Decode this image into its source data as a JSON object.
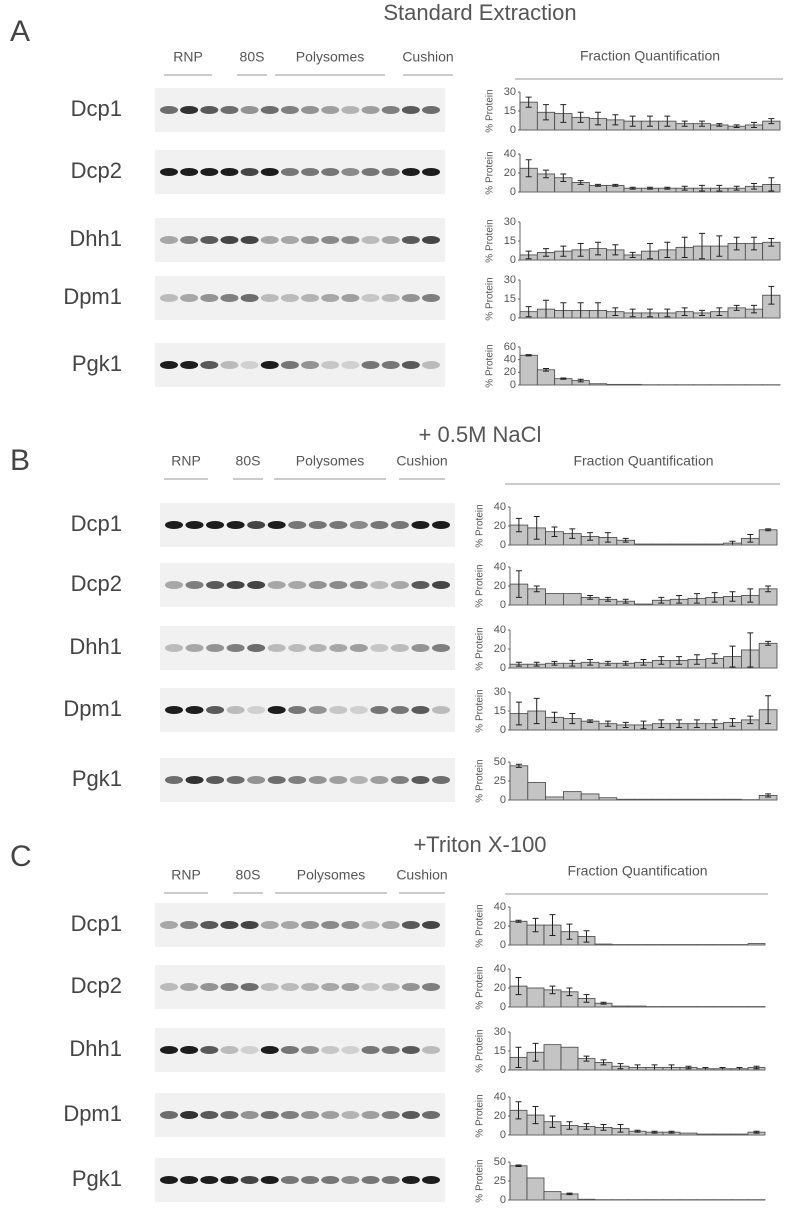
{
  "panels": [
    {
      "letter": "A",
      "title": "Standard Extraction",
      "headers": [
        "RNP",
        "80S",
        "Polysomes",
        "Cushion"
      ],
      "quant_title": "Fraction Quantification",
      "proteins": [
        "Dcp1",
        "Dcp2",
        "Dhh1",
        "Dpm1",
        "Pgk1"
      ]
    },
    {
      "letter": "B",
      "title": "+ 0.5M NaCl",
      "headers": [
        "RNP",
        "80S",
        "Polysomes",
        "Cushion"
      ],
      "quant_title": "Fraction Quantification",
      "proteins": [
        "Dcp1",
        "Dcp2",
        "Dhh1",
        "Dpm1",
        "Pgk1"
      ]
    },
    {
      "letter": "C",
      "title": "+Triton X-100",
      "headers": [
        "RNP",
        "80S",
        "Polysomes",
        "Cushion"
      ],
      "quant_title": "Fraction Quantification",
      "proteins": [
        "Dcp1",
        "Dcp2",
        "Dhh1",
        "Dpm1",
        "Pgk1"
      ]
    }
  ],
  "chart_data": [
    {
      "type": "bar",
      "ylabel": "% Protein",
      "color": "#c4c4c4",
      "ylim": [
        0,
        30
      ],
      "yticks": [
        0,
        15,
        30
      ],
      "categories": [
        null,
        null,
        null,
        null,
        null,
        null,
        null,
        null,
        null,
        null,
        null,
        null,
        null,
        null,
        null
      ],
      "values": [
        22,
        14,
        13,
        10,
        9,
        8,
        7,
        7,
        7,
        5,
        5,
        4,
        3,
        4,
        7
      ],
      "errors": [
        4,
        6,
        7,
        4,
        5,
        4,
        4,
        4,
        4,
        2,
        2,
        1,
        1,
        2,
        2
      ]
    },
    {
      "type": "bar",
      "ylabel": "% Protein",
      "color": "#c4c4c4",
      "ylim": [
        0,
        40
      ],
      "yticks": [
        0,
        20,
        40
      ],
      "categories": [
        null,
        null,
        null,
        null,
        null,
        null,
        null,
        null,
        null,
        null,
        null,
        null,
        null,
        null,
        null
      ],
      "values": [
        25,
        19,
        15,
        10,
        7,
        7,
        4,
        4,
        4,
        4,
        4,
        4,
        4,
        6,
        8
      ],
      "errors": [
        9,
        4,
        4,
        2,
        1,
        1,
        1,
        1,
        1,
        2,
        3,
        3,
        2,
        3,
        7
      ]
    },
    {
      "type": "bar",
      "ylabel": "% Protein",
      "color": "#c4c4c4",
      "ylim": [
        0,
        30
      ],
      "yticks": [
        0,
        15,
        30
      ],
      "categories": [
        null,
        null,
        null,
        null,
        null,
        null,
        null,
        null,
        null,
        null,
        null,
        null,
        null,
        null,
        null
      ],
      "values": [
        4,
        6,
        7,
        8,
        9,
        8,
        4,
        7,
        8,
        10,
        11,
        11,
        13,
        13,
        14
      ],
      "errors": [
        3,
        3,
        4,
        5,
        5,
        4,
        2,
        6,
        6,
        8,
        10,
        8,
        5,
        5,
        3
      ]
    },
    {
      "type": "bar",
      "ylabel": "% Protein",
      "color": "#c4c4c4",
      "ylim": [
        0,
        30
      ],
      "yticks": [
        0,
        15,
        30
      ],
      "categories": [
        null,
        null,
        null,
        null,
        null,
        null,
        null,
        null,
        null,
        null,
        null,
        null,
        null,
        null,
        null
      ],
      "values": [
        5,
        7,
        6,
        6,
        6,
        5,
        4,
        4,
        4,
        5,
        4,
        5,
        8,
        7,
        18
      ],
      "errors": [
        4,
        7,
        6,
        6,
        6,
        3,
        3,
        3,
        3,
        3,
        2,
        3,
        2,
        3,
        7
      ]
    },
    {
      "type": "bar",
      "ylabel": "% Protein",
      "color": "#c4c4c4",
      "ylim": [
        0,
        60
      ],
      "yticks": [
        0,
        20,
        40,
        60
      ],
      "categories": [
        null,
        null,
        null,
        null,
        null,
        null,
        null,
        null,
        null,
        null,
        null,
        null,
        null,
        null,
        null
      ],
      "values": [
        47,
        24,
        10,
        7,
        2,
        1,
        1,
        0.5,
        0.5,
        0.5,
        0.5,
        0.5,
        0.5,
        0.5,
        0.5
      ],
      "errors": [
        1,
        2,
        1,
        2,
        0,
        0,
        0,
        0,
        0,
        0,
        0,
        0,
        0,
        0,
        0
      ]
    },
    {
      "type": "bar",
      "ylabel": "% Protein",
      "color": "#c4c4c4",
      "ylim": [
        0,
        40
      ],
      "yticks": [
        0,
        20,
        40
      ],
      "categories": [
        null,
        null,
        null,
        null,
        null,
        null,
        null,
        null,
        null,
        null,
        null,
        null,
        null,
        null,
        null
      ],
      "values": [
        21,
        18,
        14,
        12,
        9,
        8,
        5,
        1,
        1,
        1,
        1,
        1,
        2,
        7,
        16
      ],
      "errors": [
        7,
        12,
        5,
        5,
        4,
        5,
        2,
        0,
        0,
        0,
        0,
        0,
        2,
        4,
        1
      ]
    },
    {
      "type": "bar",
      "ylabel": "% Protein",
      "color": "#c4c4c4",
      "ylim": [
        0,
        40
      ],
      "yticks": [
        0,
        20,
        40
      ],
      "categories": [
        null,
        null,
        null,
        null,
        null,
        null,
        null,
        null,
        null,
        null,
        null,
        null,
        null,
        null,
        null
      ],
      "values": [
        22,
        17,
        12,
        12,
        8,
        6,
        4,
        1,
        5,
        6,
        7,
        8,
        9,
        10,
        17
      ],
      "errors": [
        14,
        3,
        0,
        0,
        2,
        2,
        2,
        0,
        3,
        4,
        5,
        5,
        5,
        7,
        3
      ]
    },
    {
      "type": "bar",
      "ylabel": "% Protein",
      "color": "#c4c4c4",
      "ylim": [
        0,
        40
      ],
      "yticks": [
        0,
        20,
        40
      ],
      "categories": [
        null,
        null,
        null,
        null,
        null,
        null,
        null,
        null,
        null,
        null,
        null,
        null,
        null,
        null,
        null
      ],
      "values": [
        4,
        4,
        5,
        5,
        6,
        5,
        5,
        6,
        8,
        8,
        9,
        10,
        12,
        19,
        26
      ],
      "errors": [
        2,
        2,
        2,
        3,
        3,
        2,
        2,
        3,
        4,
        4,
        5,
        5,
        11,
        18,
        2
      ]
    },
    {
      "type": "bar",
      "ylabel": "% Protein",
      "color": "#c4c4c4",
      "ylim": [
        0,
        30
      ],
      "yticks": [
        0,
        15,
        30
      ],
      "categories": [
        null,
        null,
        null,
        null,
        null,
        null,
        null,
        null,
        null,
        null,
        null,
        null,
        null,
        null,
        null
      ],
      "values": [
        13,
        15,
        10,
        9,
        7,
        5,
        4,
        4,
        5,
        5,
        5,
        5,
        6,
        8,
        16
      ],
      "errors": [
        9,
        10,
        4,
        4,
        1,
        2,
        2,
        3,
        3,
        3,
        3,
        3,
        3,
        3,
        11
      ]
    },
    {
      "type": "bar",
      "ylabel": "% Protein",
      "color": "#c4c4c4",
      "ylim": [
        0,
        50
      ],
      "yticks": [
        0,
        25,
        50
      ],
      "categories": [
        null,
        null,
        null,
        null,
        null,
        null,
        null,
        null,
        null,
        null,
        null,
        null,
        null,
        null,
        null
      ],
      "values": [
        45,
        23,
        4,
        11,
        8,
        3,
        1,
        1,
        1,
        1,
        1,
        1,
        1,
        0.5,
        6
      ],
      "errors": [
        2,
        0,
        0,
        0,
        0,
        0,
        0,
        0,
        0,
        0,
        0,
        0,
        0,
        0,
        2
      ]
    },
    {
      "type": "bar",
      "ylabel": "% Protein",
      "color": "#c4c4c4",
      "ylim": [
        0,
        40
      ],
      "yticks": [
        0,
        20,
        40
      ],
      "categories": [
        null,
        null,
        null,
        null,
        null,
        null,
        null,
        null,
        null,
        null,
        null,
        null,
        null,
        null,
        null
      ],
      "values": [
        25,
        21,
        21,
        14,
        9,
        1,
        0.5,
        0.5,
        0.5,
        0.5,
        0.5,
        0.5,
        0.5,
        0.5,
        1.5
      ],
      "errors": [
        1,
        7,
        11,
        8,
        6,
        0,
        0,
        0,
        0,
        0,
        0,
        0,
        0,
        0,
        0
      ]
    },
    {
      "type": "bar",
      "ylabel": "% Protein",
      "color": "#c4c4c4",
      "ylim": [
        0,
        40
      ],
      "yticks": [
        0,
        20,
        40
      ],
      "categories": [
        null,
        null,
        null,
        null,
        null,
        null,
        null,
        null,
        null,
        null,
        null,
        null,
        null,
        null,
        null
      ],
      "values": [
        22,
        20,
        18,
        16,
        9,
        4,
        1,
        1,
        0.5,
        0.5,
        0.5,
        0.5,
        0.5,
        0.5,
        0.5
      ],
      "errors": [
        9,
        0,
        4,
        4,
        4,
        1,
        0,
        0,
        0,
        0,
        0,
        0,
        0,
        0,
        0
      ]
    },
    {
      "type": "bar",
      "ylabel": "% Protein",
      "color": "#c4c4c4",
      "ylim": [
        0,
        30
      ],
      "yticks": [
        0,
        15,
        30
      ],
      "categories": [
        null,
        null,
        null,
        null,
        null,
        null,
        null,
        null,
        null,
        null,
        null,
        null,
        null,
        null,
        null
      ],
      "values": [
        10,
        14,
        20,
        18,
        9,
        6,
        3,
        2,
        2,
        2,
        2,
        1,
        1,
        1,
        2
      ],
      "errors": [
        8,
        7,
        0,
        0,
        2,
        2,
        2,
        2,
        2,
        2,
        1,
        1,
        1,
        1,
        1
      ]
    },
    {
      "type": "bar",
      "ylabel": "% Protein",
      "color": "#c4c4c4",
      "ylim": [
        0,
        40
      ],
      "yticks": [
        0,
        20,
        40
      ],
      "categories": [
        null,
        null,
        null,
        null,
        null,
        null,
        null,
        null,
        null,
        null,
        null,
        null,
        null,
        null,
        null
      ],
      "values": [
        26,
        21,
        14,
        10,
        9,
        8,
        7,
        4,
        3,
        3,
        2,
        1,
        1,
        1,
        3
      ],
      "errors": [
        9,
        9,
        6,
        4,
        3,
        3,
        4,
        1,
        1,
        1,
        0,
        0,
        0,
        0,
        1
      ]
    },
    {
      "type": "bar",
      "ylabel": "% Protein",
      "color": "#c4c4c4",
      "ylim": [
        0,
        50
      ],
      "yticks": [
        0,
        25,
        50
      ],
      "categories": [
        null,
        null,
        null,
        null,
        null,
        null,
        null,
        null,
        null,
        null,
        null,
        null,
        null,
        null,
        null
      ],
      "values": [
        45,
        29,
        11,
        8,
        1,
        0.5,
        0.5,
        0.5,
        0.5,
        0.5,
        0.5,
        0.5,
        0.5,
        0.5,
        0.5
      ],
      "errors": [
        1,
        0,
        0,
        1,
        0,
        0,
        0,
        0,
        0,
        0,
        0,
        0,
        0,
        0,
        0
      ]
    }
  ]
}
